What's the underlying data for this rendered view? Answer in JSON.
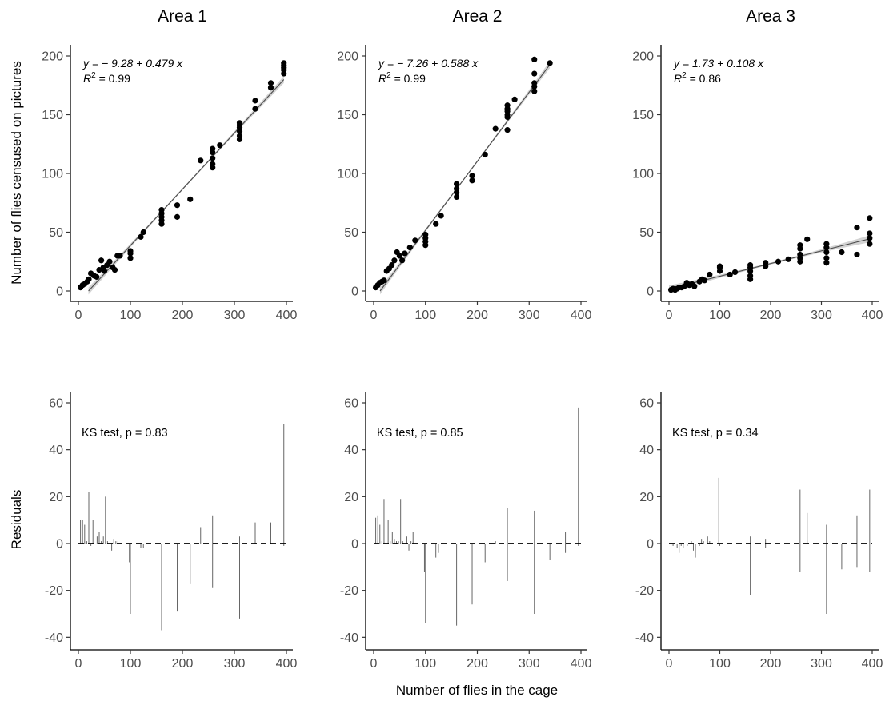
{
  "figure": {
    "x_axis_title": "Number of flies in the cage",
    "top_y_axis_title": "Number of flies censused on pictures",
    "bottom_y_axis_title": "Residuals"
  },
  "chart_data": [
    {
      "type": "scatter",
      "title": "Area 1",
      "xlabel": "",
      "ylabel": "Number of flies censused on pictures",
      "xlim": [
        0,
        400
      ],
      "ylim": [
        0,
        200
      ],
      "xticks": [
        0,
        100,
        200,
        300,
        400
      ],
      "yticks": [
        0,
        50,
        100,
        150,
        200
      ],
      "grid": false,
      "equation": "y = − 9.28 + 0.479 x",
      "r2_label": "R",
      "r2_value": "2",
      "r2_rest": " = 0.99",
      "fit": {
        "intercept": -9.28,
        "slope": 0.479
      },
      "points": [
        [
          4,
          3
        ],
        [
          8,
          5
        ],
        [
          12,
          6
        ],
        [
          17,
          8
        ],
        [
          20,
          10
        ],
        [
          24,
          15
        ],
        [
          30,
          13
        ],
        [
          35,
          12
        ],
        [
          40,
          18
        ],
        [
          44,
          26
        ],
        [
          48,
          20
        ],
        [
          50,
          17
        ],
        [
          55,
          22
        ],
        [
          60,
          25
        ],
        [
          66,
          20
        ],
        [
          70,
          18
        ],
        [
          75,
          30
        ],
        [
          80,
          30
        ],
        [
          100,
          28
        ],
        [
          100,
          32
        ],
        [
          100,
          34
        ],
        [
          120,
          46
        ],
        [
          125,
          50
        ],
        [
          160,
          57
        ],
        [
          160,
          60
        ],
        [
          160,
          63
        ],
        [
          160,
          66
        ],
        [
          160,
          69
        ],
        [
          190,
          63
        ],
        [
          190,
          73
        ],
        [
          215,
          78
        ],
        [
          235,
          111
        ],
        [
          258,
          105
        ],
        [
          258,
          108
        ],
        [
          258,
          113
        ],
        [
          258,
          118
        ],
        [
          258,
          121
        ],
        [
          272,
          124
        ],
        [
          310,
          129
        ],
        [
          310,
          132
        ],
        [
          310,
          136
        ],
        [
          310,
          139
        ],
        [
          310,
          141
        ],
        [
          310,
          143
        ],
        [
          340,
          155
        ],
        [
          340,
          162
        ],
        [
          370,
          173
        ],
        [
          370,
          177
        ],
        [
          395,
          185
        ],
        [
          395,
          188
        ],
        [
          395,
          190
        ],
        [
          395,
          192
        ],
        [
          395,
          194
        ]
      ]
    },
    {
      "type": "scatter",
      "title": "Area 2",
      "xlabel": "",
      "ylabel": "",
      "xlim": [
        0,
        400
      ],
      "ylim": [
        0,
        200
      ],
      "xticks": [
        0,
        100,
        200,
        300,
        400
      ],
      "yticks": [
        0,
        50,
        100,
        150,
        200
      ],
      "grid": false,
      "equation": "y = − 7.26 + 0.588 x",
      "r2_label": "R",
      "r2_value": "2",
      "r2_rest": " = 0.99",
      "fit": {
        "intercept": -7.26,
        "slope": 0.588
      },
      "points": [
        [
          4,
          3
        ],
        [
          8,
          5
        ],
        [
          12,
          7
        ],
        [
          16,
          8
        ],
        [
          20,
          9
        ],
        [
          25,
          17
        ],
        [
          30,
          19
        ],
        [
          35,
          22
        ],
        [
          40,
          26
        ],
        [
          45,
          33
        ],
        [
          50,
          30
        ],
        [
          55,
          26
        ],
        [
          60,
          32
        ],
        [
          70,
          37
        ],
        [
          80,
          43
        ],
        [
          100,
          39
        ],
        [
          100,
          42
        ],
        [
          100,
          45
        ],
        [
          100,
          48
        ],
        [
          120,
          57
        ],
        [
          130,
          64
        ],
        [
          160,
          80
        ],
        [
          160,
          84
        ],
        [
          160,
          87
        ],
        [
          160,
          91
        ],
        [
          190,
          94
        ],
        [
          190,
          98
        ],
        [
          215,
          116
        ],
        [
          235,
          138
        ],
        [
          258,
          137
        ],
        [
          258,
          148
        ],
        [
          258,
          150
        ],
        [
          258,
          153
        ],
        [
          258,
          155
        ],
        [
          258,
          158
        ],
        [
          272,
          163
        ],
        [
          310,
          170
        ],
        [
          310,
          174
        ],
        [
          310,
          177
        ],
        [
          310,
          185
        ],
        [
          310,
          197
        ],
        [
          340,
          194
        ]
      ]
    },
    {
      "type": "scatter",
      "title": "Area 3",
      "xlabel": "",
      "ylabel": "",
      "xlim": [
        0,
        400
      ],
      "ylim": [
        0,
        200
      ],
      "xticks": [
        0,
        100,
        200,
        300,
        400
      ],
      "yticks": [
        0,
        50,
        100,
        150,
        200
      ],
      "grid": false,
      "equation": "y = 1.73 + 0.108 x",
      "r2_label": "R",
      "r2_value": "2",
      "r2_rest": " = 0.86",
      "fit": {
        "intercept": 1.73,
        "slope": 0.108
      },
      "points": [
        [
          4,
          1
        ],
        [
          8,
          2
        ],
        [
          12,
          1
        ],
        [
          16,
          2
        ],
        [
          20,
          3
        ],
        [
          25,
          3
        ],
        [
          30,
          4
        ],
        [
          35,
          7
        ],
        [
          40,
          5
        ],
        [
          45,
          6
        ],
        [
          50,
          4
        ],
        [
          60,
          8
        ],
        [
          65,
          10
        ],
        [
          70,
          9
        ],
        [
          80,
          14
        ],
        [
          100,
          17
        ],
        [
          100,
          20
        ],
        [
          100,
          21
        ],
        [
          120,
          14
        ],
        [
          130,
          16
        ],
        [
          160,
          10
        ],
        [
          160,
          13
        ],
        [
          160,
          17
        ],
        [
          160,
          20
        ],
        [
          160,
          22
        ],
        [
          190,
          21
        ],
        [
          190,
          24
        ],
        [
          215,
          25
        ],
        [
          235,
          27
        ],
        [
          258,
          25
        ],
        [
          258,
          28
        ],
        [
          258,
          31
        ],
        [
          258,
          36
        ],
        [
          258,
          39
        ],
        [
          272,
          44
        ],
        [
          310,
          24
        ],
        [
          310,
          28
        ],
        [
          310,
          33
        ],
        [
          310,
          37
        ],
        [
          310,
          40
        ],
        [
          340,
          33
        ],
        [
          370,
          31
        ],
        [
          370,
          54
        ],
        [
          395,
          40
        ],
        [
          395,
          45
        ],
        [
          395,
          49
        ],
        [
          395,
          62
        ]
      ]
    },
    {
      "type": "bar",
      "title": "",
      "xlabel": "",
      "ylabel": "Residuals",
      "xlim": [
        0,
        400
      ],
      "ylim": [
        -45,
        65
      ],
      "xticks": [
        0,
        100,
        200,
        300,
        400
      ],
      "yticks": [
        -40,
        -20,
        0,
        20,
        40,
        60
      ],
      "grid": false,
      "annotation": "KS test, p = 0.83",
      "reference_line": 0,
      "residuals": [
        [
          4,
          10
        ],
        [
          8,
          10
        ],
        [
          12,
          8
        ],
        [
          16,
          1
        ],
        [
          20,
          22
        ],
        [
          24,
          -1
        ],
        [
          28,
          10
        ],
        [
          32,
          0
        ],
        [
          36,
          3
        ],
        [
          40,
          5
        ],
        [
          44,
          1
        ],
        [
          48,
          3
        ],
        [
          52,
          20
        ],
        [
          56,
          1
        ],
        [
          60,
          0
        ],
        [
          64,
          -3
        ],
        [
          68,
          2
        ],
        [
          72,
          1
        ],
        [
          76,
          1
        ],
        [
          80,
          0
        ],
        [
          98,
          -8
        ],
        [
          100,
          -30
        ],
        [
          120,
          -2
        ],
        [
          125,
          -2
        ],
        [
          130,
          0
        ],
        [
          160,
          -37
        ],
        [
          190,
          -29
        ],
        [
          215,
          -17
        ],
        [
          235,
          7
        ],
        [
          258,
          -19
        ],
        [
          258,
          12
        ],
        [
          310,
          -32
        ],
        [
          310,
          3
        ],
        [
          340,
          9
        ],
        [
          370,
          9
        ],
        [
          395,
          51
        ],
        [
          395,
          -1
        ]
      ]
    },
    {
      "type": "bar",
      "title": "",
      "xlabel": "",
      "ylabel": "",
      "xlim": [
        0,
        400
      ],
      "ylim": [
        -45,
        65
      ],
      "xticks": [
        0,
        100,
        200,
        300,
        400
      ],
      "yticks": [
        -40,
        -20,
        0,
        20,
        40,
        60
      ],
      "grid": false,
      "annotation": "KS test, p = 0.85",
      "reference_line": 0,
      "residuals": [
        [
          4,
          11
        ],
        [
          8,
          12
        ],
        [
          12,
          8
        ],
        [
          16,
          1
        ],
        [
          20,
          19
        ],
        [
          24,
          0
        ],
        [
          28,
          10
        ],
        [
          32,
          1
        ],
        [
          36,
          5
        ],
        [
          40,
          2
        ],
        [
          44,
          1
        ],
        [
          48,
          1
        ],
        [
          52,
          19
        ],
        [
          56,
          1
        ],
        [
          60,
          0
        ],
        [
          64,
          3
        ],
        [
          68,
          -3
        ],
        [
          72,
          1
        ],
        [
          76,
          5
        ],
        [
          80,
          0
        ],
        [
          98,
          -12
        ],
        [
          100,
          -34
        ],
        [
          120,
          -6
        ],
        [
          125,
          -4
        ],
        [
          130,
          0
        ],
        [
          160,
          -35
        ],
        [
          190,
          -26
        ],
        [
          215,
          -8
        ],
        [
          235,
          1
        ],
        [
          258,
          -16
        ],
        [
          258,
          15
        ],
        [
          310,
          -30
        ],
        [
          310,
          14
        ],
        [
          340,
          -7
        ],
        [
          370,
          5
        ],
        [
          370,
          -4
        ],
        [
          395,
          58
        ],
        [
          395,
          -1
        ]
      ]
    },
    {
      "type": "bar",
      "title": "",
      "xlabel": "",
      "ylabel": "",
      "xlim": [
        0,
        400
      ],
      "ylim": [
        -45,
        65
      ],
      "xticks": [
        0,
        100,
        200,
        300,
        400
      ],
      "yticks": [
        -40,
        -20,
        0,
        20,
        40,
        60
      ],
      "grid": false,
      "annotation": "KS test, p = 0.34",
      "reference_line": 0,
      "residuals": [
        [
          4,
          -1
        ],
        [
          8,
          -1
        ],
        [
          12,
          0
        ],
        [
          16,
          -2
        ],
        [
          20,
          -4
        ],
        [
          24,
          -1
        ],
        [
          28,
          -2
        ],
        [
          32,
          0
        ],
        [
          36,
          -1
        ],
        [
          40,
          0
        ],
        [
          44,
          1
        ],
        [
          48,
          -3
        ],
        [
          52,
          -6
        ],
        [
          56,
          0
        ],
        [
          60,
          -1
        ],
        [
          64,
          2
        ],
        [
          68,
          1
        ],
        [
          72,
          0
        ],
        [
          76,
          3
        ],
        [
          80,
          1
        ],
        [
          98,
          28
        ],
        [
          100,
          -1
        ],
        [
          120,
          0
        ],
        [
          130,
          0
        ],
        [
          160,
          -22
        ],
        [
          160,
          3
        ],
        [
          190,
          2
        ],
        [
          190,
          -2
        ],
        [
          215,
          0
        ],
        [
          258,
          23
        ],
        [
          258,
          -12
        ],
        [
          272,
          13
        ],
        [
          310,
          8
        ],
        [
          310,
          -30
        ],
        [
          340,
          -11
        ],
        [
          370,
          12
        ],
        [
          370,
          -10
        ],
        [
          395,
          23
        ],
        [
          395,
          -12
        ]
      ]
    }
  ]
}
